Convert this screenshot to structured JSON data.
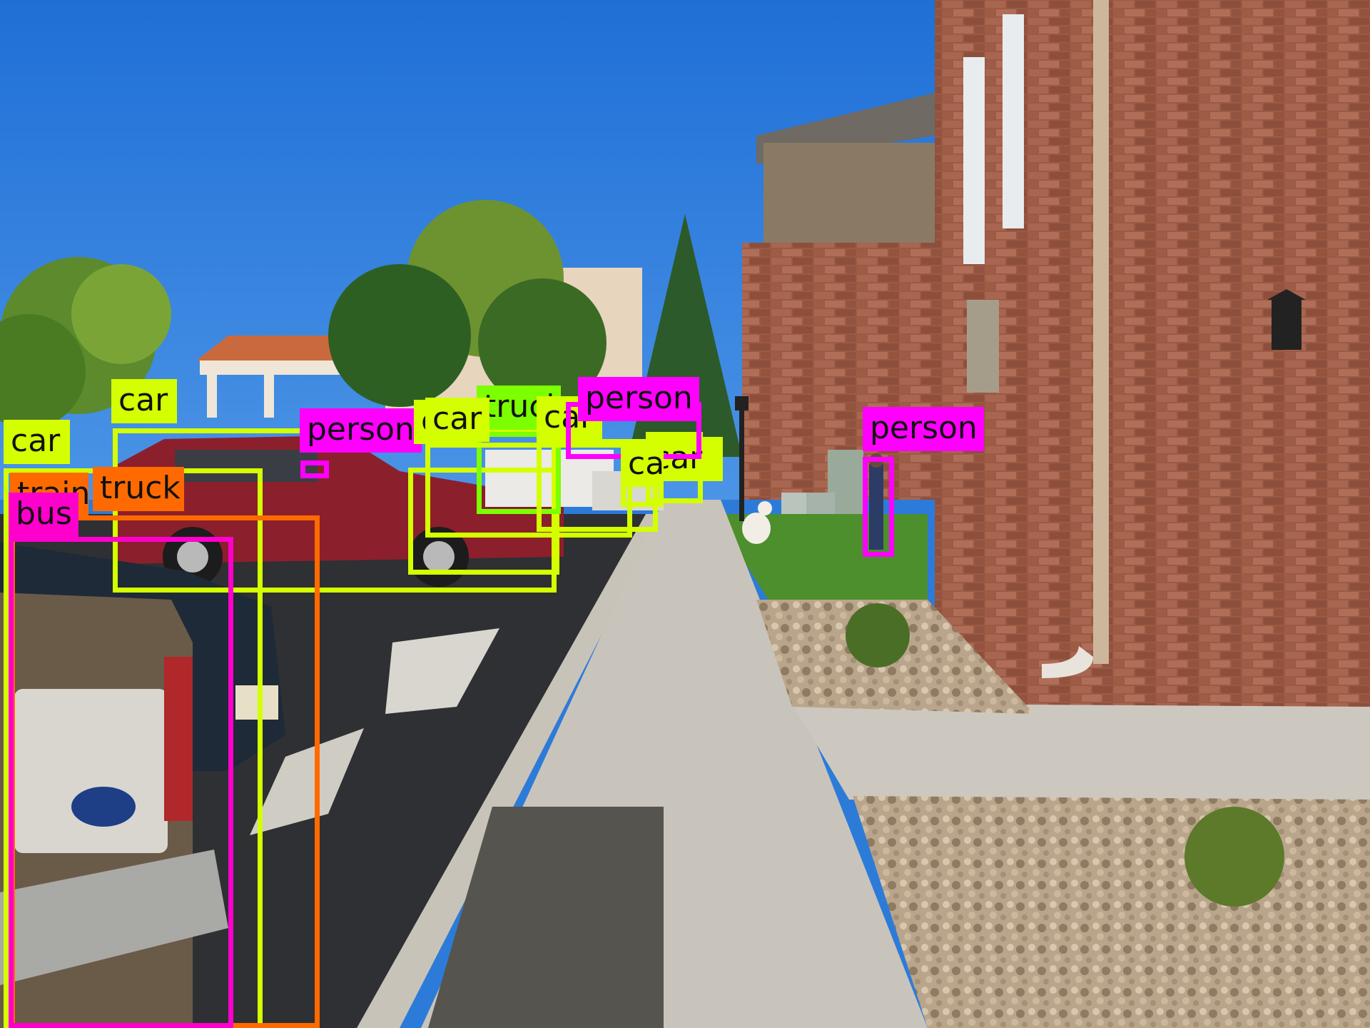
{
  "scene": {
    "description_icons": [
      "brick-building",
      "sidewalk",
      "parking-lot",
      "pickup-truck",
      "red-suv",
      "trees",
      "dog",
      "person",
      "wall-lantern"
    ]
  },
  "colors": {
    "car": "#d4ff00",
    "truck": "#ff6a00",
    "person": "#ff00ff",
    "bus": "#ff00cc",
    "train": "#ff6a00",
    "truck_far": "#7cff00"
  },
  "detections": [
    {
      "label": "car"
    },
    {
      "label": "car"
    },
    {
      "label": "train"
    },
    {
      "label": "truck"
    },
    {
      "label": "bus"
    },
    {
      "label": "person"
    },
    {
      "label": "car"
    },
    {
      "label": "truck"
    },
    {
      "label": "car"
    },
    {
      "label": "car"
    },
    {
      "label": "car"
    },
    {
      "label": "person"
    },
    {
      "label": "person"
    },
    {
      "label": "car"
    }
  ]
}
